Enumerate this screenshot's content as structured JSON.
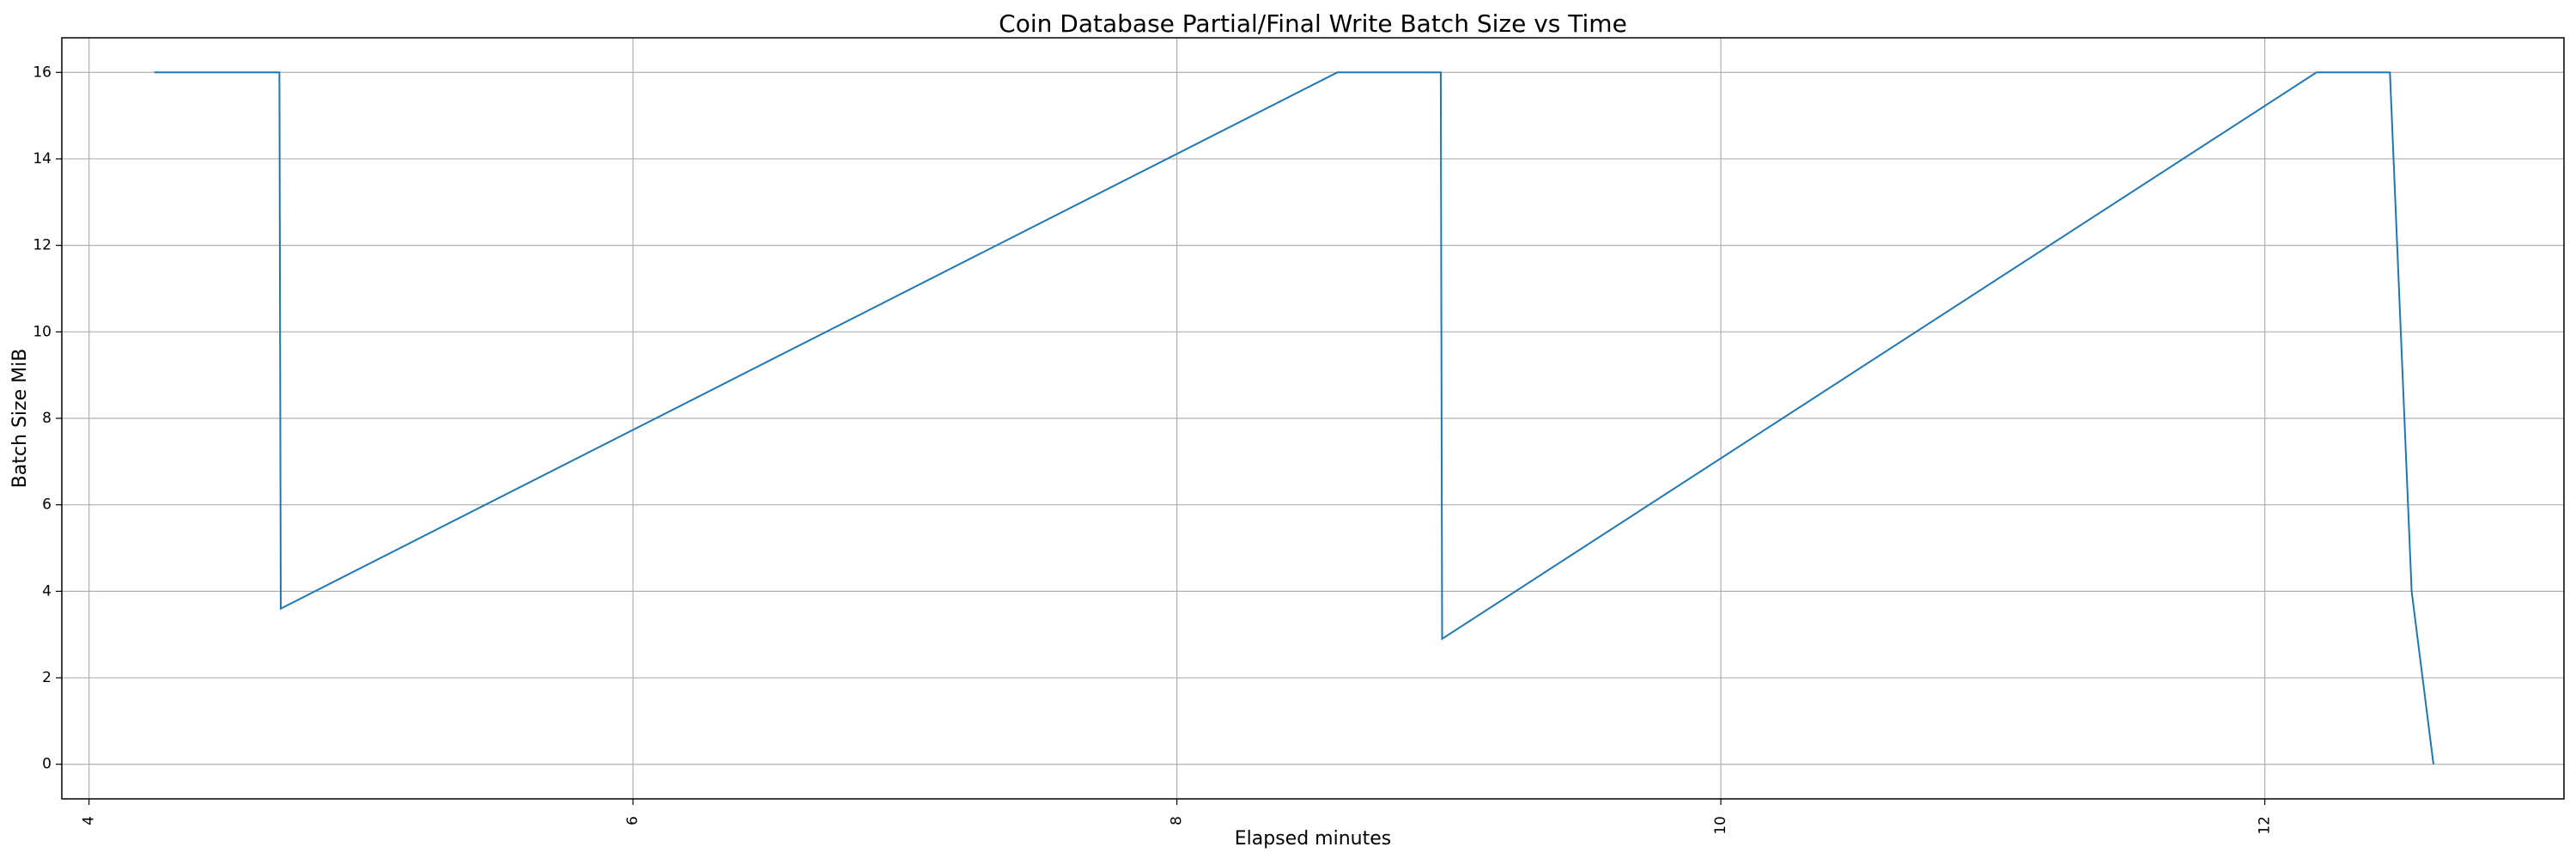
{
  "chart_data": {
    "type": "line",
    "title": "Coin Database Partial/Final Write Batch Size vs Time",
    "xlabel": "Elapsed minutes",
    "ylabel": "Batch Size MiB",
    "xlim": [
      3.9,
      13.1
    ],
    "ylim": [
      -0.8,
      16.8
    ],
    "xticks": [
      4,
      6,
      8,
      10,
      12
    ],
    "yticks": [
      0,
      2,
      4,
      6,
      8,
      10,
      12,
      14,
      16
    ],
    "grid": true,
    "legend": "none",
    "series": [
      {
        "color": "#1f77b4",
        "x": [
          4.24,
          4.7,
          4.705,
          8.59,
          8.97,
          8.975,
          12.19,
          12.46,
          12.54,
          12.62
        ],
        "y": [
          16,
          16,
          3.6,
          16,
          16,
          2.9,
          16,
          16,
          4.0,
          0
        ]
      }
    ]
  }
}
